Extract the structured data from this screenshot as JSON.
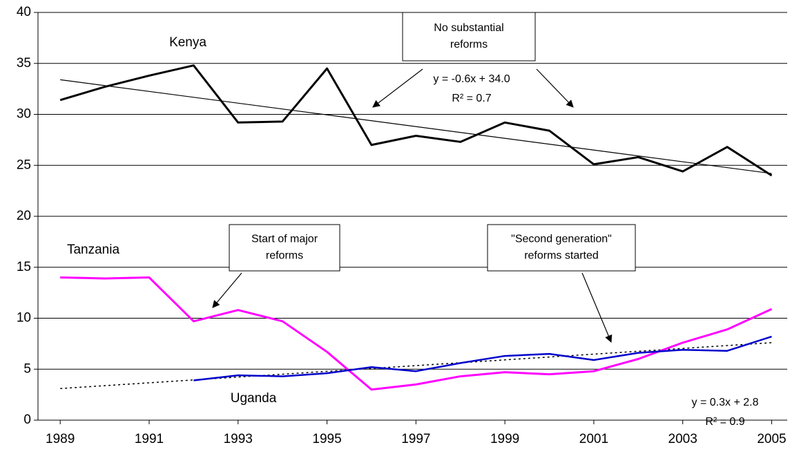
{
  "chart_data": {
    "type": "line",
    "x": [
      1989,
      1990,
      1991,
      1992,
      1993,
      1994,
      1995,
      1996,
      1997,
      1998,
      1999,
      2000,
      2001,
      2002,
      2003,
      2004,
      2005
    ],
    "series": [
      {
        "name": "Kenya",
        "color": "#000000",
        "values": [
          31.4,
          32.7,
          33.8,
          34.8,
          29.2,
          29.3,
          34.5,
          27.0,
          27.9,
          27.3,
          29.2,
          28.4,
          25.1,
          25.8,
          24.4,
          26.8,
          24.0
        ]
      },
      {
        "name": "Tanzania",
        "color": "#ff00ff",
        "values": [
          14.0,
          13.9,
          14.0,
          9.7,
          10.8,
          9.7,
          6.7,
          3.0,
          3.5,
          4.3,
          4.7,
          4.5,
          4.8,
          6.0,
          7.6,
          8.9,
          10.9
        ]
      },
      {
        "name": "Uganda",
        "color": "#0000cc",
        "values": [
          null,
          null,
          null,
          3.9,
          4.4,
          4.3,
          4.6,
          5.2,
          4.8,
          5.6,
          6.3,
          6.5,
          5.9,
          6.6,
          6.9,
          6.8,
          8.2
        ]
      }
    ],
    "trendlines": [
      {
        "x": [
          1989,
          2005
        ],
        "values": [
          33.4,
          24.2
        ],
        "color": "#000000",
        "dashed": false
      },
      {
        "x": [
          1989,
          2005
        ],
        "values": [
          3.1,
          7.6
        ],
        "color": "#000000",
        "dashed": true
      }
    ],
    "annotations": [
      {
        "lines": [
          "No substantial",
          "reforms"
        ]
      },
      {
        "lines": [
          "Start of major",
          "reforms"
        ]
      },
      {
        "lines": [
          "\"Second generation\"",
          "reforms started"
        ]
      }
    ],
    "equations": [
      {
        "lines": [
          "y = -0.6x + 34.0",
          "R² = 0.7"
        ]
      },
      {
        "lines": [
          "y = 0.3x + 2.8",
          "R² = 0.9"
        ]
      }
    ],
    "xlim": [
      1988.5,
      2005.35
    ],
    "xticks": [
      1989,
      1991,
      1993,
      1995,
      1997,
      1999,
      2001,
      2003,
      2005
    ],
    "ylim": [
      0,
      40
    ],
    "yticks": [
      0,
      5,
      10,
      15,
      20,
      25,
      30,
      35,
      40
    ],
    "grid": true
  }
}
